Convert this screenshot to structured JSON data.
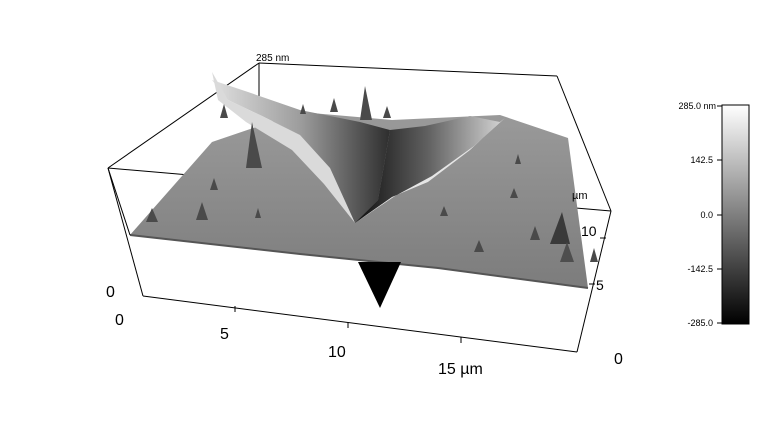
{
  "plot": {
    "z_axis": {
      "top_label": "285 nm",
      "zero_label": "0"
    },
    "x_axis": {
      "ticks": [
        "0",
        "5",
        "10",
        "15 µm"
      ]
    },
    "y_axis": {
      "ticks": [
        "0",
        "5",
        "10"
      ],
      "unit": "µm"
    }
  },
  "colorbar": {
    "labels": [
      "285.0 nm",
      "142.5",
      "0.0",
      "-142.5",
      "-285.0"
    ],
    "gradient": [
      "#ffffff",
      "#000000"
    ]
  }
}
